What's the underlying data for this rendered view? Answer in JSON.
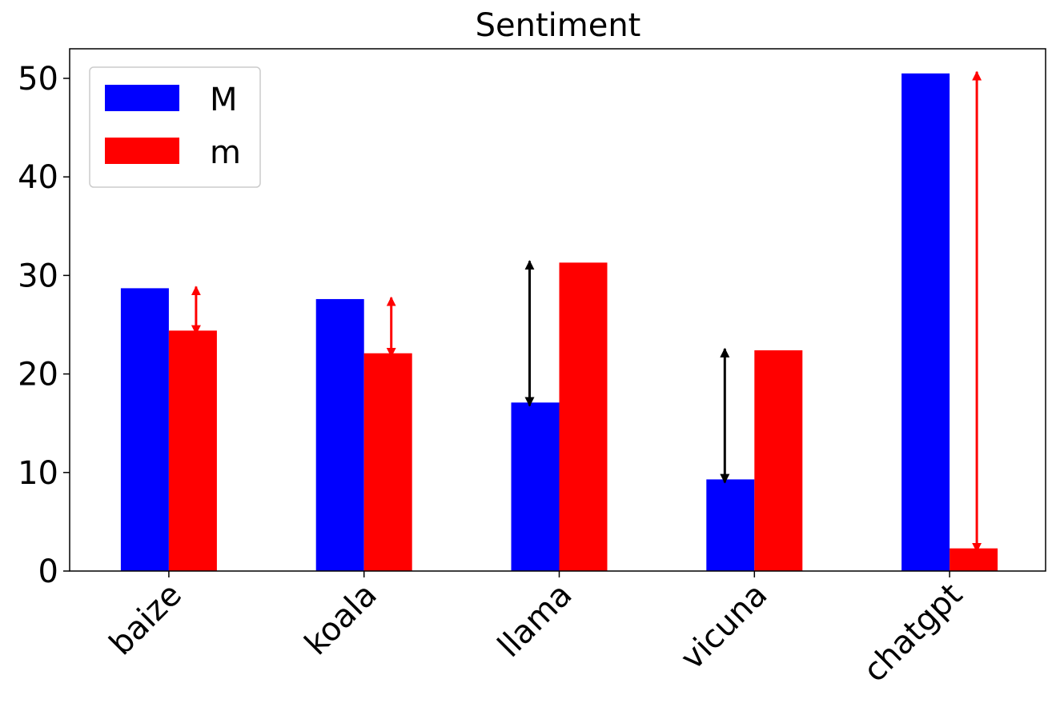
{
  "chart_data": {
    "type": "bar",
    "title": "Sentiment",
    "xlabel": "",
    "ylabel": "",
    "categories": [
      "baize",
      "koala",
      "llama",
      "vicuna",
      "chatgpt"
    ],
    "series": [
      {
        "name": "M",
        "color": "#0000ff",
        "values": [
          28.7,
          27.6,
          17.1,
          9.3,
          50.5
        ]
      },
      {
        "name": "m",
        "color": "#ff0000",
        "values": [
          24.4,
          22.1,
          31.3,
          22.4,
          2.3
        ]
      }
    ],
    "ylim": [
      0,
      53
    ],
    "yticks": [
      0,
      10,
      20,
      30,
      40,
      50
    ],
    "grid": false,
    "legend_position": "top-left",
    "annotations": [
      {
        "type": "double-arrow",
        "category": "baize",
        "from": 24.4,
        "to": 28.7,
        "color": "#ff0000"
      },
      {
        "type": "double-arrow",
        "category": "koala",
        "from": 22.1,
        "to": 27.6,
        "color": "#ff0000"
      },
      {
        "type": "double-arrow",
        "category": "llama",
        "from": 17.1,
        "to": 31.3,
        "color": "#000000"
      },
      {
        "type": "double-arrow",
        "category": "vicuna",
        "from": 9.3,
        "to": 22.4,
        "color": "#000000"
      },
      {
        "type": "double-arrow",
        "category": "chatgpt",
        "from": 2.3,
        "to": 50.5,
        "color": "#ff0000"
      }
    ]
  }
}
